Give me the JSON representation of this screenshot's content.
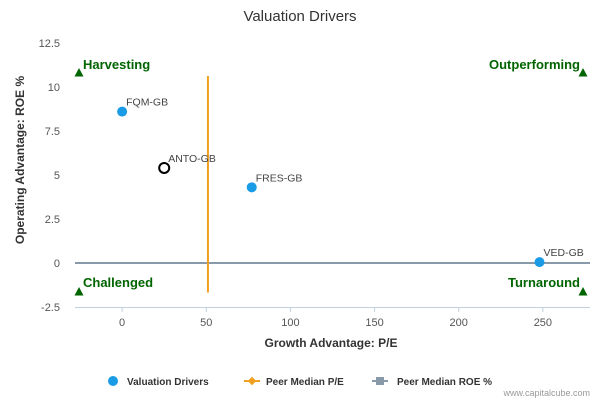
{
  "chart_data": {
    "type": "scatter",
    "title": "Valuation Drivers",
    "xlabel": "Growth Advantage: P/E",
    "ylabel": "Operating Advantage: ROE %",
    "xlim": [
      -28,
      278
    ],
    "ylim": [
      -2.5,
      12.5
    ],
    "x_ticks": [
      0,
      50,
      100,
      150,
      200,
      250
    ],
    "y_ticks": [
      12.5,
      10,
      7.5,
      5,
      2.5,
      0,
      -2.5
    ],
    "grid": false,
    "legend_position": "bottom",
    "points": [
      {
        "label": "FQM-GB",
        "x": 0,
        "y": 8.6,
        "style": "filled"
      },
      {
        "label": "ANTO-GB",
        "x": 25,
        "y": 5.4,
        "style": "hollow"
      },
      {
        "label": "FRES-GB",
        "x": 77,
        "y": 4.3,
        "style": "filled"
      },
      {
        "label": "VED-GB",
        "x": 248,
        "y": 0.05,
        "style": "filled"
      }
    ],
    "peer_median_pe": 51,
    "peer_median_roe": 0,
    "quadrants": {
      "top_left": "Harvesting",
      "top_right": "Outperforming",
      "bottom_left": "Challenged",
      "bottom_right": "Turnaround"
    },
    "legend": [
      "Valuation Drivers",
      "Peer Median P/E",
      "Peer Median ROE %"
    ],
    "colors": {
      "points": "#1a9be6",
      "pe_line": "#f0a020",
      "roe_line": "#8899aa",
      "quadrant": "#006400",
      "hollow_stroke": "#000000"
    }
  },
  "credit": "www.capitalcube.com"
}
